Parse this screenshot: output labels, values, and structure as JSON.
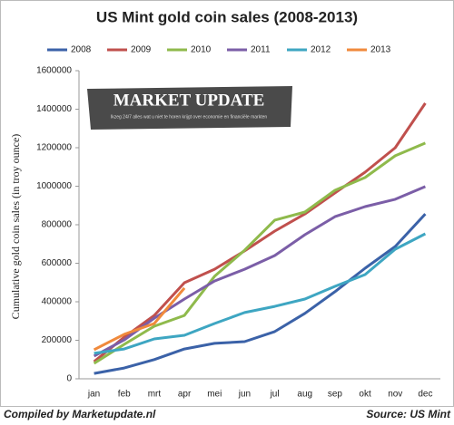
{
  "chart_data": {
    "type": "line",
    "title": "US Mint gold coin sales (2008-2013)",
    "y_label": "Cumulative gold coin sales (in troy ounce)",
    "watermark": {
      "title": "MARKET UPDATE",
      "subtitle": "Ikzeg 24/7 alles wat u niet te horen krijgt over economie en financiële markten"
    },
    "footer_left": "Compiled by Marketupdate.nl",
    "footer_right": "Source: US Mint",
    "categories": [
      "jan",
      "feb",
      "mrt",
      "apr",
      "mei",
      "jun",
      "jul",
      "aug",
      "sep",
      "okt",
      "nov",
      "dec"
    ],
    "series": [
      {
        "name": "2008",
        "color": "#3b62a8",
        "values": [
          28000,
          56000,
          100000,
          155000,
          184000,
          193000,
          245000,
          340000,
          452000,
          574000,
          687000,
          856000
        ]
      },
      {
        "name": "2009",
        "color": "#c0504d",
        "values": [
          89000,
          216000,
          329000,
          499000,
          569000,
          664000,
          767000,
          856000,
          965000,
          1073000,
          1200000,
          1431000
        ]
      },
      {
        "name": "2010",
        "color": "#8fba4c",
        "values": [
          80000,
          179000,
          273000,
          329000,
          532000,
          668000,
          824000,
          866000,
          979000,
          1045000,
          1158000,
          1224000
        ]
      },
      {
        "name": "2011",
        "color": "#7b5ea7",
        "values": [
          118000,
          202000,
          315000,
          414000,
          508000,
          569000,
          640000,
          748000,
          842000,
          894000,
          932000,
          998000
        ]
      },
      {
        "name": "2012",
        "color": "#3ea6c2",
        "values": [
          132000,
          155000,
          207000,
          226000,
          287000,
          344000,
          376000,
          414000,
          480000,
          541000,
          673000,
          753000
        ]
      },
      {
        "name": "2013",
        "color": "#f08a3c",
        "values": [
          151000,
          231000,
          287000,
          471000,
          null,
          null,
          null,
          null,
          null,
          null,
          null,
          null
        ]
      }
    ],
    "ylim": [
      0,
      1600000
    ],
    "yticks": [
      0,
      200000,
      400000,
      600000,
      800000,
      1000000,
      1200000,
      1400000,
      1600000
    ],
    "grid": false,
    "legend": "top"
  }
}
